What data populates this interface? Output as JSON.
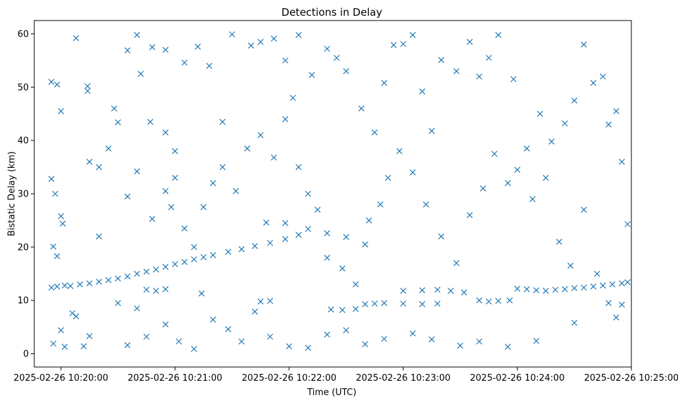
{
  "chart_data": {
    "type": "scatter",
    "title": "Detections in Delay",
    "xlabel": "Time (UTC)",
    "ylabel": "Bistatic Delay (km)",
    "x_tick_labels": [
      "2025-02-26 10:20:00",
      "2025-02-26 10:21:00",
      "2025-02-26 10:22:00",
      "2025-02-26 10:23:00",
      "2025-02-26 10:24:00",
      "2025-02-26 10:25:00"
    ],
    "y_tick_labels": [
      "0",
      "10",
      "20",
      "30",
      "40",
      "50",
      "60"
    ],
    "xlim": [
      "2025-02-26 10:19:46",
      "2025-02-26 10:25:00"
    ],
    "ylim": [
      -2.5,
      62.5
    ],
    "marker": "x",
    "grid": false,
    "color": "#1f77b4",
    "series": [
      {
        "points": [
          [
            "10:19:55",
            12.4
          ],
          [
            "10:19:58",
            12.6
          ],
          [
            "10:20:02",
            12.8
          ],
          [
            "10:20:05",
            12.7
          ],
          [
            "10:20:10",
            13.0
          ],
          [
            "10:20:15",
            13.2
          ],
          [
            "10:20:20",
            13.5
          ],
          [
            "10:20:25",
            13.8
          ],
          [
            "10:20:30",
            14.1
          ],
          [
            "10:20:35",
            14.5
          ],
          [
            "10:20:40",
            15.0
          ],
          [
            "10:20:45",
            15.4
          ],
          [
            "10:20:50",
            15.8
          ],
          [
            "10:20:55",
            16.3
          ],
          [
            "10:21:00",
            16.8
          ],
          [
            "10:21:05",
            17.2
          ],
          [
            "10:21:10",
            17.7
          ],
          [
            "10:21:15",
            18.1
          ],
          [
            "10:21:20",
            18.5
          ],
          [
            "10:21:28",
            19.1
          ],
          [
            "10:21:35",
            19.6
          ],
          [
            "10:21:42",
            20.2
          ],
          [
            "10:21:50",
            20.8
          ],
          [
            "10:21:58",
            21.5
          ],
          [
            "10:22:05",
            22.3
          ],
          [
            "10:22:10",
            23.4
          ],
          [
            "10:22:20",
            22.6
          ],
          [
            "10:22:30",
            21.9
          ],
          [
            "10:22:40",
            20.5
          ],
          [
            "10:20:45",
            12.0
          ],
          [
            "10:20:50",
            11.8
          ],
          [
            "10:20:55",
            12.1
          ],
          [
            "10:21:48",
            24.6
          ],
          [
            "10:21:58",
            24.5
          ],
          [
            "10:22:22",
            8.3
          ],
          [
            "10:22:28",
            8.2
          ],
          [
            "10:22:35",
            8.4
          ],
          [
            "10:21:45",
            9.8
          ],
          [
            "10:21:50",
            9.9
          ],
          [
            "10:22:40",
            9.3
          ],
          [
            "10:22:45",
            9.4
          ],
          [
            "10:22:50",
            9.5
          ],
          [
            "10:23:00",
            9.4
          ],
          [
            "10:23:10",
            9.3
          ],
          [
            "10:23:18",
            9.4
          ],
          [
            "10:23:00",
            11.8
          ],
          [
            "10:23:10",
            11.9
          ],
          [
            "10:23:18",
            12.0
          ],
          [
            "10:23:25",
            11.8
          ],
          [
            "10:23:32",
            11.5
          ],
          [
            "10:23:40",
            10.0
          ],
          [
            "10:23:45",
            9.8
          ],
          [
            "10:23:50",
            9.9
          ],
          [
            "10:23:56",
            10.0
          ],
          [
            "10:24:00",
            12.2
          ],
          [
            "10:24:05",
            12.1
          ],
          [
            "10:24:10",
            11.9
          ],
          [
            "10:24:15",
            11.8
          ],
          [
            "10:24:20",
            12.0
          ],
          [
            "10:24:25",
            12.1
          ],
          [
            "10:24:30",
            12.3
          ],
          [
            "10:24:35",
            12.4
          ],
          [
            "10:24:40",
            12.6
          ],
          [
            "10:24:45",
            12.8
          ],
          [
            "10:24:50",
            13.0
          ],
          [
            "10:24:55",
            13.2
          ],
          [
            "10:24:58",
            13.4
          ],
          [
            "10:19:55",
            51.0
          ],
          [
            "10:19:58",
            50.5
          ],
          [
            "10:20:08",
            59.2
          ],
          [
            "10:20:14",
            50.2
          ],
          [
            "10:20:14",
            49.3
          ],
          [
            "10:20:00",
            45.5
          ],
          [
            "10:19:55",
            32.8
          ],
          [
            "10:19:57",
            30.0
          ],
          [
            "10:20:00",
            25.8
          ],
          [
            "10:20:01",
            24.4
          ],
          [
            "10:19:56",
            20.1
          ],
          [
            "10:19:58",
            18.3
          ],
          [
            "10:20:00",
            4.4
          ],
          [
            "10:20:02",
            1.3
          ],
          [
            "10:19:56",
            1.9
          ],
          [
            "10:20:06",
            7.6
          ],
          [
            "10:20:08",
            7.0
          ],
          [
            "10:20:12",
            1.4
          ],
          [
            "10:20:15",
            3.3
          ],
          [
            "10:20:20",
            35.0
          ],
          [
            "10:20:28",
            46.0
          ],
          [
            "10:20:35",
            56.9
          ],
          [
            "10:20:40",
            59.8
          ],
          [
            "10:20:42",
            52.5
          ],
          [
            "10:20:47",
            43.5
          ],
          [
            "10:20:48",
            57.5
          ],
          [
            "10:20:55",
            41.5
          ],
          [
            "10:21:00",
            38.0
          ],
          [
            "10:20:58",
            27.5
          ],
          [
            "10:21:05",
            23.5
          ],
          [
            "10:21:10",
            20.0
          ],
          [
            "10:20:30",
            9.5
          ],
          [
            "10:20:35",
            1.6
          ],
          [
            "10:20:40",
            8.5
          ],
          [
            "10:20:45",
            3.2
          ],
          [
            "10:20:55",
            5.5
          ],
          [
            "10:21:02",
            2.3
          ],
          [
            "10:21:10",
            0.9
          ],
          [
            "10:21:14",
            11.3
          ],
          [
            "10:21:20",
            6.4
          ],
          [
            "10:21:28",
            4.6
          ],
          [
            "10:21:35",
            2.3
          ],
          [
            "10:21:42",
            7.9
          ],
          [
            "10:20:55",
            57.0
          ],
          [
            "10:21:05",
            54.6
          ],
          [
            "10:21:12",
            57.6
          ],
          [
            "10:21:18",
            54.0
          ],
          [
            "10:21:25",
            43.5
          ],
          [
            "10:21:30",
            59.9
          ],
          [
            "10:21:40",
            57.8
          ],
          [
            "10:21:45",
            58.5
          ],
          [
            "10:21:52",
            59.1
          ],
          [
            "10:21:58",
            55.0
          ],
          [
            "10:22:05",
            59.8
          ],
          [
            "10:22:12",
            52.3
          ],
          [
            "10:22:20",
            57.2
          ],
          [
            "10:22:25",
            55.5
          ],
          [
            "10:22:30",
            53.0
          ],
          [
            "10:22:38",
            46.0
          ],
          [
            "10:22:45",
            41.5
          ],
          [
            "10:22:50",
            50.8
          ],
          [
            "10:22:55",
            57.9
          ],
          [
            "10:23:00",
            58.1
          ],
          [
            "10:23:05",
            59.8
          ],
          [
            "10:23:10",
            49.2
          ],
          [
            "10:23:15",
            41.8
          ],
          [
            "10:23:20",
            55.1
          ],
          [
            "10:23:28",
            53.0
          ],
          [
            "10:23:35",
            58.5
          ],
          [
            "10:23:40",
            52.0
          ],
          [
            "10:23:45",
            55.5
          ],
          [
            "10:23:50",
            59.8
          ],
          [
            "10:23:58",
            51.5
          ],
          [
            "10:24:05",
            38.5
          ],
          [
            "10:24:12",
            45.0
          ],
          [
            "10:24:18",
            39.8
          ],
          [
            "10:24:25",
            43.2
          ],
          [
            "10:24:30",
            47.5
          ],
          [
            "10:24:35",
            58.0
          ],
          [
            "10:24:40",
            50.8
          ],
          [
            "10:24:45",
            52.0
          ],
          [
            "10:24:48",
            43.0
          ],
          [
            "10:24:52",
            45.5
          ],
          [
            "10:24:55",
            36.0
          ],
          [
            "10:24:58",
            24.3
          ],
          [
            "10:22:05",
            35.0
          ],
          [
            "10:22:10",
            30.0
          ],
          [
            "10:22:15",
            27.0
          ],
          [
            "10:22:20",
            18.0
          ],
          [
            "10:22:28",
            16.0
          ],
          [
            "10:22:35",
            13.0
          ],
          [
            "10:22:42",
            25.0
          ],
          [
            "10:22:48",
            28.0
          ],
          [
            "10:22:52",
            33.0
          ],
          [
            "10:22:58",
            38.0
          ],
          [
            "10:23:05",
            34.0
          ],
          [
            "10:23:12",
            28.0
          ],
          [
            "10:23:20",
            22.0
          ],
          [
            "10:23:28",
            17.0
          ],
          [
            "10:23:35",
            26.0
          ],
          [
            "10:23:42",
            31.0
          ],
          [
            "10:23:48",
            37.5
          ],
          [
            "10:23:55",
            32.0
          ],
          [
            "10:24:00",
            34.5
          ],
          [
            "10:24:08",
            29.0
          ],
          [
            "10:24:15",
            33.0
          ],
          [
            "10:24:22",
            21.0
          ],
          [
            "10:24:28",
            16.5
          ],
          [
            "10:24:35",
            27.0
          ],
          [
            "10:24:42",
            15.0
          ],
          [
            "10:24:48",
            9.5
          ],
          [
            "10:24:52",
            6.8
          ],
          [
            "10:24:55",
            9.2
          ],
          [
            "10:24:30",
            5.8
          ],
          [
            "10:24:10",
            2.4
          ],
          [
            "10:23:55",
            1.3
          ],
          [
            "10:23:40",
            2.3
          ],
          [
            "10:23:30",
            1.5
          ],
          [
            "10:23:15",
            2.7
          ],
          [
            "10:23:05",
            3.8
          ],
          [
            "10:22:50",
            2.8
          ],
          [
            "10:22:40",
            1.8
          ],
          [
            "10:22:30",
            4.4
          ],
          [
            "10:22:20",
            3.6
          ],
          [
            "10:22:10",
            1.1
          ],
          [
            "10:22:00",
            1.4
          ],
          [
            "10:21:50",
            3.2
          ],
          [
            "10:21:15",
            27.5
          ],
          [
            "10:21:20",
            32.0
          ],
          [
            "10:21:25",
            35.0
          ],
          [
            "10:21:32",
            30.5
          ],
          [
            "10:21:38",
            38.5
          ],
          [
            "10:21:45",
            41.0
          ],
          [
            "10:21:52",
            36.8
          ],
          [
            "10:21:58",
            44.0
          ],
          [
            "10:22:02",
            48.0
          ],
          [
            "10:21:00",
            33.0
          ],
          [
            "10:20:55",
            30.5
          ],
          [
            "10:20:48",
            25.3
          ],
          [
            "10:20:40",
            34.2
          ],
          [
            "10:20:35",
            29.5
          ],
          [
            "10:20:30",
            43.4
          ],
          [
            "10:20:25",
            38.5
          ],
          [
            "10:20:20",
            22.0
          ],
          [
            "10:20:15",
            36.0
          ]
        ]
      }
    ]
  }
}
